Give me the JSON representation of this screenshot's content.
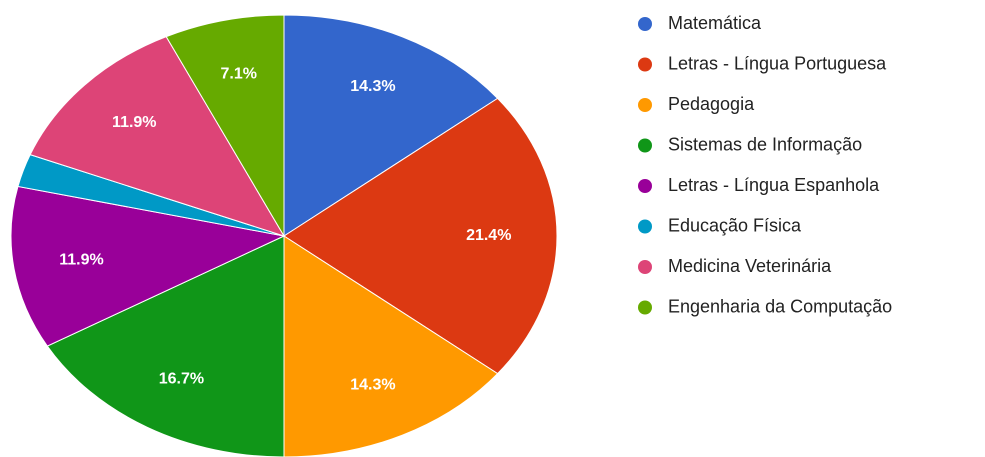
{
  "chart_data": {
    "type": "pie",
    "categories": [
      "Matemática",
      "Letras - Língua Portuguesa",
      "Pedagogia",
      "Sistemas de Informação",
      "Letras - Língua Espanhola",
      "Educação Física",
      "Medicina Veterinária",
      "Engenharia da Computação"
    ],
    "values": [
      14.3,
      21.4,
      14.3,
      16.7,
      11.9,
      2.4,
      11.9,
      7.1
    ],
    "value_labels": [
      "14.3%",
      "21.4%",
      "14.3%",
      "16.7%",
      "11.9%",
      null,
      "11.9%",
      "7.1%"
    ],
    "colors": [
      "#3366cc",
      "#dc3912",
      "#ff9900",
      "#109618",
      "#990099",
      "#0099c6",
      "#dd4477",
      "#66aa00"
    ],
    "legend": "right"
  }
}
